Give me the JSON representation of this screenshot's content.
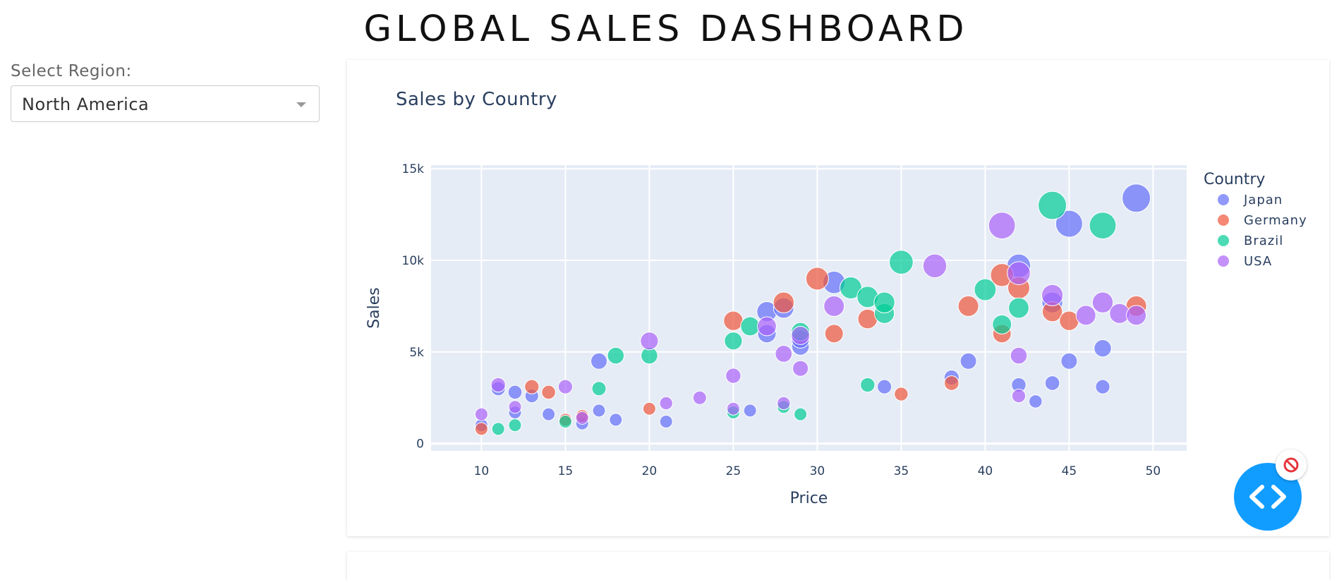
{
  "app": {
    "title": "GLOBAL SALES DASHBOARD"
  },
  "controls": {
    "region_label": "Select Region:",
    "region_value": "North America"
  },
  "chart_data": {
    "type": "scatter",
    "title": "Sales by Country",
    "xlabel": "Price",
    "ylabel": "Sales",
    "xlim": [
      7,
      52
    ],
    "ylim": [
      -400,
      15200
    ],
    "x_ticks": [
      10,
      15,
      20,
      25,
      30,
      35,
      40,
      45,
      50
    ],
    "y_ticks": [
      0,
      5000,
      10000,
      15000
    ],
    "y_tick_labels": [
      "0",
      "5k",
      "10k",
      "15k"
    ],
    "grid": true,
    "legend": {
      "title": "Country",
      "position": "right"
    },
    "marker_size": "bubble size varies with sales",
    "series": [
      {
        "name": "Japan",
        "color": "#636efa",
        "points": [
          [
            10,
            1000
          ],
          [
            11,
            3000
          ],
          [
            12,
            2800
          ],
          [
            12,
            1700
          ],
          [
            13,
            2600
          ],
          [
            14,
            1600
          ],
          [
            16,
            1100
          ],
          [
            17,
            4500
          ],
          [
            17,
            1800
          ],
          [
            18,
            1300
          ],
          [
            21,
            1200
          ],
          [
            26,
            1800
          ],
          [
            27,
            7200
          ],
          [
            27,
            6000
          ],
          [
            28,
            7400
          ],
          [
            29,
            5300
          ],
          [
            29,
            5700
          ],
          [
            31,
            8800
          ],
          [
            34,
            3100
          ],
          [
            38,
            3600
          ],
          [
            39,
            4500
          ],
          [
            42,
            9700
          ],
          [
            42,
            3200
          ],
          [
            43,
            2300
          ],
          [
            44,
            3300
          ],
          [
            44,
            7700
          ],
          [
            45,
            4500
          ],
          [
            45,
            12000
          ],
          [
            47,
            5200
          ],
          [
            47,
            3100
          ],
          [
            49,
            13400
          ]
        ]
      },
      {
        "name": "Germany",
        "color": "#ef553b",
        "points": [
          [
            10,
            800
          ],
          [
            13,
            3100
          ],
          [
            14,
            2800
          ],
          [
            15,
            1300
          ],
          [
            16,
            1500
          ],
          [
            20,
            1900
          ],
          [
            25,
            6700
          ],
          [
            28,
            7700
          ],
          [
            30,
            9000
          ],
          [
            31,
            6000
          ],
          [
            33,
            6800
          ],
          [
            35,
            2700
          ],
          [
            38,
            3300
          ],
          [
            39,
            7500
          ],
          [
            41,
            9200
          ],
          [
            41,
            6000
          ],
          [
            42,
            8500
          ],
          [
            44,
            7200
          ],
          [
            45,
            6700
          ],
          [
            49,
            7500
          ]
        ]
      },
      {
        "name": "Brazil",
        "color": "#00cc96",
        "points": [
          [
            11,
            800
          ],
          [
            12,
            1000
          ],
          [
            15,
            1200
          ],
          [
            17,
            3000
          ],
          [
            18,
            4800
          ],
          [
            20,
            4800
          ],
          [
            25,
            5600
          ],
          [
            25,
            1700
          ],
          [
            26,
            6400
          ],
          [
            28,
            2000
          ],
          [
            29,
            6100
          ],
          [
            29,
            1600
          ],
          [
            32,
            8500
          ],
          [
            33,
            8000
          ],
          [
            33,
            3200
          ],
          [
            34,
            7100
          ],
          [
            34,
            7700
          ],
          [
            35,
            9900
          ],
          [
            40,
            8400
          ],
          [
            41,
            6500
          ],
          [
            42,
            7400
          ],
          [
            44,
            13000
          ],
          [
            47,
            11900
          ]
        ]
      },
      {
        "name": "USA",
        "color": "#ab63fa",
        "points": [
          [
            10,
            1600
          ],
          [
            11,
            3200
          ],
          [
            12,
            2000
          ],
          [
            15,
            3100
          ],
          [
            16,
            1400
          ],
          [
            20,
            5600
          ],
          [
            21,
            2200
          ],
          [
            23,
            2500
          ],
          [
            25,
            3700
          ],
          [
            25,
            1900
          ],
          [
            27,
            6400
          ],
          [
            28,
            4900
          ],
          [
            28,
            2200
          ],
          [
            29,
            4100
          ],
          [
            29,
            5900
          ],
          [
            31,
            7500
          ],
          [
            37,
            9700
          ],
          [
            41,
            11900
          ],
          [
            42,
            9300
          ],
          [
            42,
            4800
          ],
          [
            42,
            2600
          ],
          [
            44,
            8100
          ],
          [
            46,
            7000
          ],
          [
            47,
            7700
          ],
          [
            48,
            7100
          ],
          [
            49,
            7000
          ]
        ]
      }
    ]
  }
}
